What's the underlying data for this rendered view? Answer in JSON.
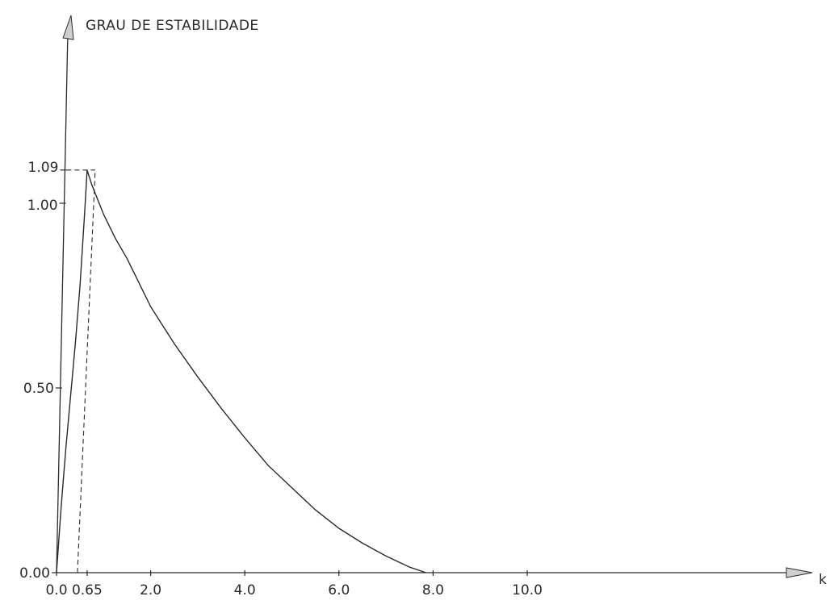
{
  "chart_data": {
    "type": "line",
    "title": "",
    "ylabel": "GRAU DE ESTABILIDADE",
    "xlabel": "k",
    "xlim": [
      0,
      11.0
    ],
    "ylim": [
      0,
      1.48
    ],
    "x_ticks": [
      {
        "value": 0.0,
        "label": "0.0"
      },
      {
        "value": 0.65,
        "label": "0.65"
      },
      {
        "value": 2.0,
        "label": "2.0"
      },
      {
        "value": 4.0,
        "label": "4.0"
      },
      {
        "value": 6.0,
        "label": "6.0"
      },
      {
        "value": 8.0,
        "label": "8.0"
      },
      {
        "value": 10.0,
        "label": "10.0"
      }
    ],
    "y_ticks": [
      {
        "value": 0.0,
        "label": "0.00"
      },
      {
        "value": 0.5,
        "label": "0.50"
      },
      {
        "value": 1.0,
        "label": "1.00"
      },
      {
        "value": 1.09,
        "label": "1.09"
      }
    ],
    "reference_lines": [
      {
        "x": 0.65,
        "y": 1.09,
        "style": "dashed"
      }
    ],
    "series": [
      {
        "x": [
          0.0,
          0.1,
          0.2,
          0.3,
          0.4,
          0.5,
          0.6,
          0.65,
          0.75,
          1.0,
          1.25,
          1.5,
          2.0,
          2.5,
          3.0,
          3.5,
          4.0,
          4.5,
          5.0,
          5.5,
          6.0,
          6.5,
          7.0,
          7.5,
          7.85
        ],
        "y": [
          0.0,
          0.18,
          0.34,
          0.48,
          0.62,
          0.78,
          0.98,
          1.09,
          1.05,
          0.97,
          0.905,
          0.85,
          0.72,
          0.62,
          0.53,
          0.445,
          0.365,
          0.29,
          0.23,
          0.17,
          0.12,
          0.08,
          0.045,
          0.015,
          0.0
        ]
      }
    ],
    "grid": false,
    "legend": "none"
  }
}
